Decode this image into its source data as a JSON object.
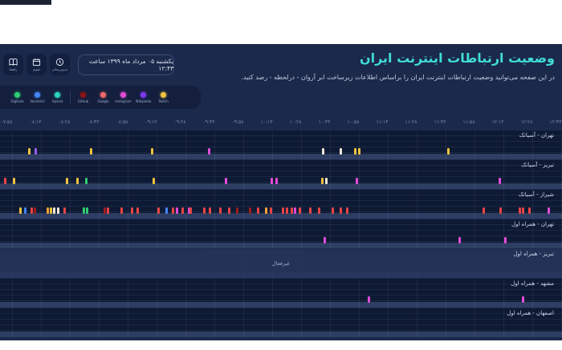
{
  "header": {
    "title": "وضعیت ارتباطات اینترنت ایران",
    "subtitle": "در این صفحه می‌توانید وضعیت ارتباطات اینترنت ایران را براساس اطلاعات زیرساخت ابر آروان - درلحظه - رصد کنید.",
    "datetime": "یکشنبه ۰۵ مرداد ماه ۱۳۹۹ ساعت ۱۲:۴۳",
    "buttons": [
      {
        "id": "guide",
        "icon": "book-icon",
        "label": "راهنما"
      },
      {
        "id": "calendar",
        "icon": "calendar-icon",
        "label": "تقویم"
      },
      {
        "id": "refresh",
        "icon": "history-clock-icon",
        "label": "به‌روزرسانی"
      }
    ]
  },
  "legend": {
    "groups": [
      {
        "name": "domestic",
        "items": [
          {
            "label": "Digikala",
            "color": "#2ecc71"
          },
          {
            "label": "Varzesh3",
            "color": "#4285f4"
          },
          {
            "label": "Aparat",
            "color": "#2dd4bf"
          }
        ]
      },
      {
        "name": "international",
        "items": [
          {
            "label": "Github",
            "color": "#8b1313"
          },
          {
            "label": "Google",
            "color": "#f06a6a"
          },
          {
            "label": "Instagram",
            "color": "#e24bd8"
          },
          {
            "label": "Wikipedia",
            "color": "#7c3aed"
          },
          {
            "label": "Twitch",
            "color": "#eec33e"
          }
        ]
      }
    ]
  },
  "chart_data": {
    "type": "timeline",
    "time_ticks": [
      "۰۷:۵۸",
      "۰۸:۱۳",
      "۰۸:۲۸",
      "۰۸:۴۳",
      "۰۸:۵۸",
      "۰۹:۱۳",
      "۰۹:۲۸",
      "۰۹:۴۳",
      "۰۹:۵۸",
      "۱۰:۱۳",
      "۱۰:۲۸",
      "۱۰:۴۳",
      "۱۰:۵۸",
      "۱۱:۱۳",
      "۱۱:۲۸",
      "۱۱:۴۳",
      "۱۱:۵۸",
      "۱۲:۱۳",
      "۱۲:۲۸",
      "۱۲:۴۳"
    ],
    "palette": {
      "yellow": "#eec33e",
      "purple": "#9a5cf0",
      "magenta": "#e24bd8",
      "red": "#e84545",
      "maroon": "#9c1d1d",
      "green": "#2ecc71",
      "blue": "#4285f4",
      "pale": "#efe8d8",
      "orange": "#f0a13c"
    },
    "bands": [
      {
        "label": "تهران - آسیاتک",
        "no_data": false,
        "events": [
          [
            35,
            "yellow"
          ],
          [
            43,
            "purple"
          ],
          [
            112,
            "yellow"
          ],
          [
            188,
            "yellow"
          ],
          [
            259,
            "magenta"
          ],
          [
            401,
            "pale"
          ],
          [
            423,
            "pale"
          ],
          [
            441,
            "yellow"
          ],
          [
            446,
            "yellow"
          ],
          [
            557,
            "yellow"
          ]
        ]
      },
      {
        "label": "تبریز - آسیاتک",
        "no_data": false,
        "events": [
          [
            5,
            "red"
          ],
          [
            16,
            "yellow"
          ],
          [
            82,
            "yellow"
          ],
          [
            95,
            "yellow"
          ],
          [
            106,
            "green"
          ],
          [
            190,
            "yellow"
          ],
          [
            280,
            "magenta"
          ],
          [
            337,
            "magenta"
          ],
          [
            343,
            "magenta"
          ],
          [
            400,
            "yellow"
          ],
          [
            405,
            "pale"
          ],
          [
            443,
            "magenta"
          ],
          [
            621,
            "magenta"
          ]
        ]
      },
      {
        "label": "شیراز - آسیاتک",
        "no_data": false,
        "events": [
          [
            24,
            "yellow"
          ],
          [
            30,
            "blue"
          ],
          [
            38,
            "red"
          ],
          [
            42,
            "maroon"
          ],
          [
            58,
            "orange"
          ],
          [
            62,
            "yellow"
          ],
          [
            66,
            "pale"
          ],
          [
            71,
            "pale"
          ],
          [
            79,
            "red"
          ],
          [
            103,
            "green"
          ],
          [
            107,
            "green"
          ],
          [
            129,
            "maroon"
          ],
          [
            133,
            "red"
          ],
          [
            150,
            "red"
          ],
          [
            163,
            "red"
          ],
          [
            170,
            "red"
          ],
          [
            196,
            "red"
          ],
          [
            206,
            "blue"
          ],
          [
            214,
            "red"
          ],
          [
            219,
            "magenta"
          ],
          [
            226,
            "red"
          ],
          [
            234,
            "magenta"
          ],
          [
            236,
            "red"
          ],
          [
            253,
            "red"
          ],
          [
            260,
            "red"
          ],
          [
            273,
            "red"
          ],
          [
            284,
            "red"
          ],
          [
            294,
            "maroon"
          ],
          [
            310,
            "maroon"
          ],
          [
            320,
            "red"
          ],
          [
            330,
            "orange"
          ],
          [
            336,
            "red"
          ],
          [
            351,
            "red"
          ],
          [
            356,
            "red"
          ],
          [
            362,
            "red"
          ],
          [
            366,
            "magenta"
          ],
          [
            372,
            "red"
          ],
          [
            385,
            "red"
          ],
          [
            396,
            "red"
          ],
          [
            413,
            "red"
          ],
          [
            423,
            "red"
          ],
          [
            431,
            "red"
          ],
          [
            601,
            "red"
          ],
          [
            622,
            "red"
          ],
          [
            646,
            "red"
          ],
          [
            650,
            "red"
          ],
          [
            658,
            "red"
          ],
          [
            682,
            "magenta"
          ]
        ]
      },
      {
        "label": "تهران - همراه اول",
        "no_data": false,
        "events": [
          [
            403,
            "magenta"
          ],
          [
            571,
            "magenta"
          ],
          [
            628,
            "magenta"
          ]
        ]
      },
      {
        "label": "تبریز - همراه اول",
        "no_data": true,
        "status": "غیرفعال",
        "events": []
      },
      {
        "label": "مشهد - همراه اول",
        "no_data": false,
        "events": [
          [
            458,
            "magenta"
          ],
          [
            650,
            "magenta"
          ]
        ]
      },
      {
        "label": "اصفهان - همراه اول",
        "no_data": false,
        "events": []
      }
    ]
  },
  "colors": {
    "page_bg": "#1b294b",
    "band_bg": "#0e1a33",
    "band_summary": "#2e3e63",
    "panel_bg": "#131f3d",
    "title": "#41dcd7",
    "no_data_overlay": "#26365c"
  }
}
